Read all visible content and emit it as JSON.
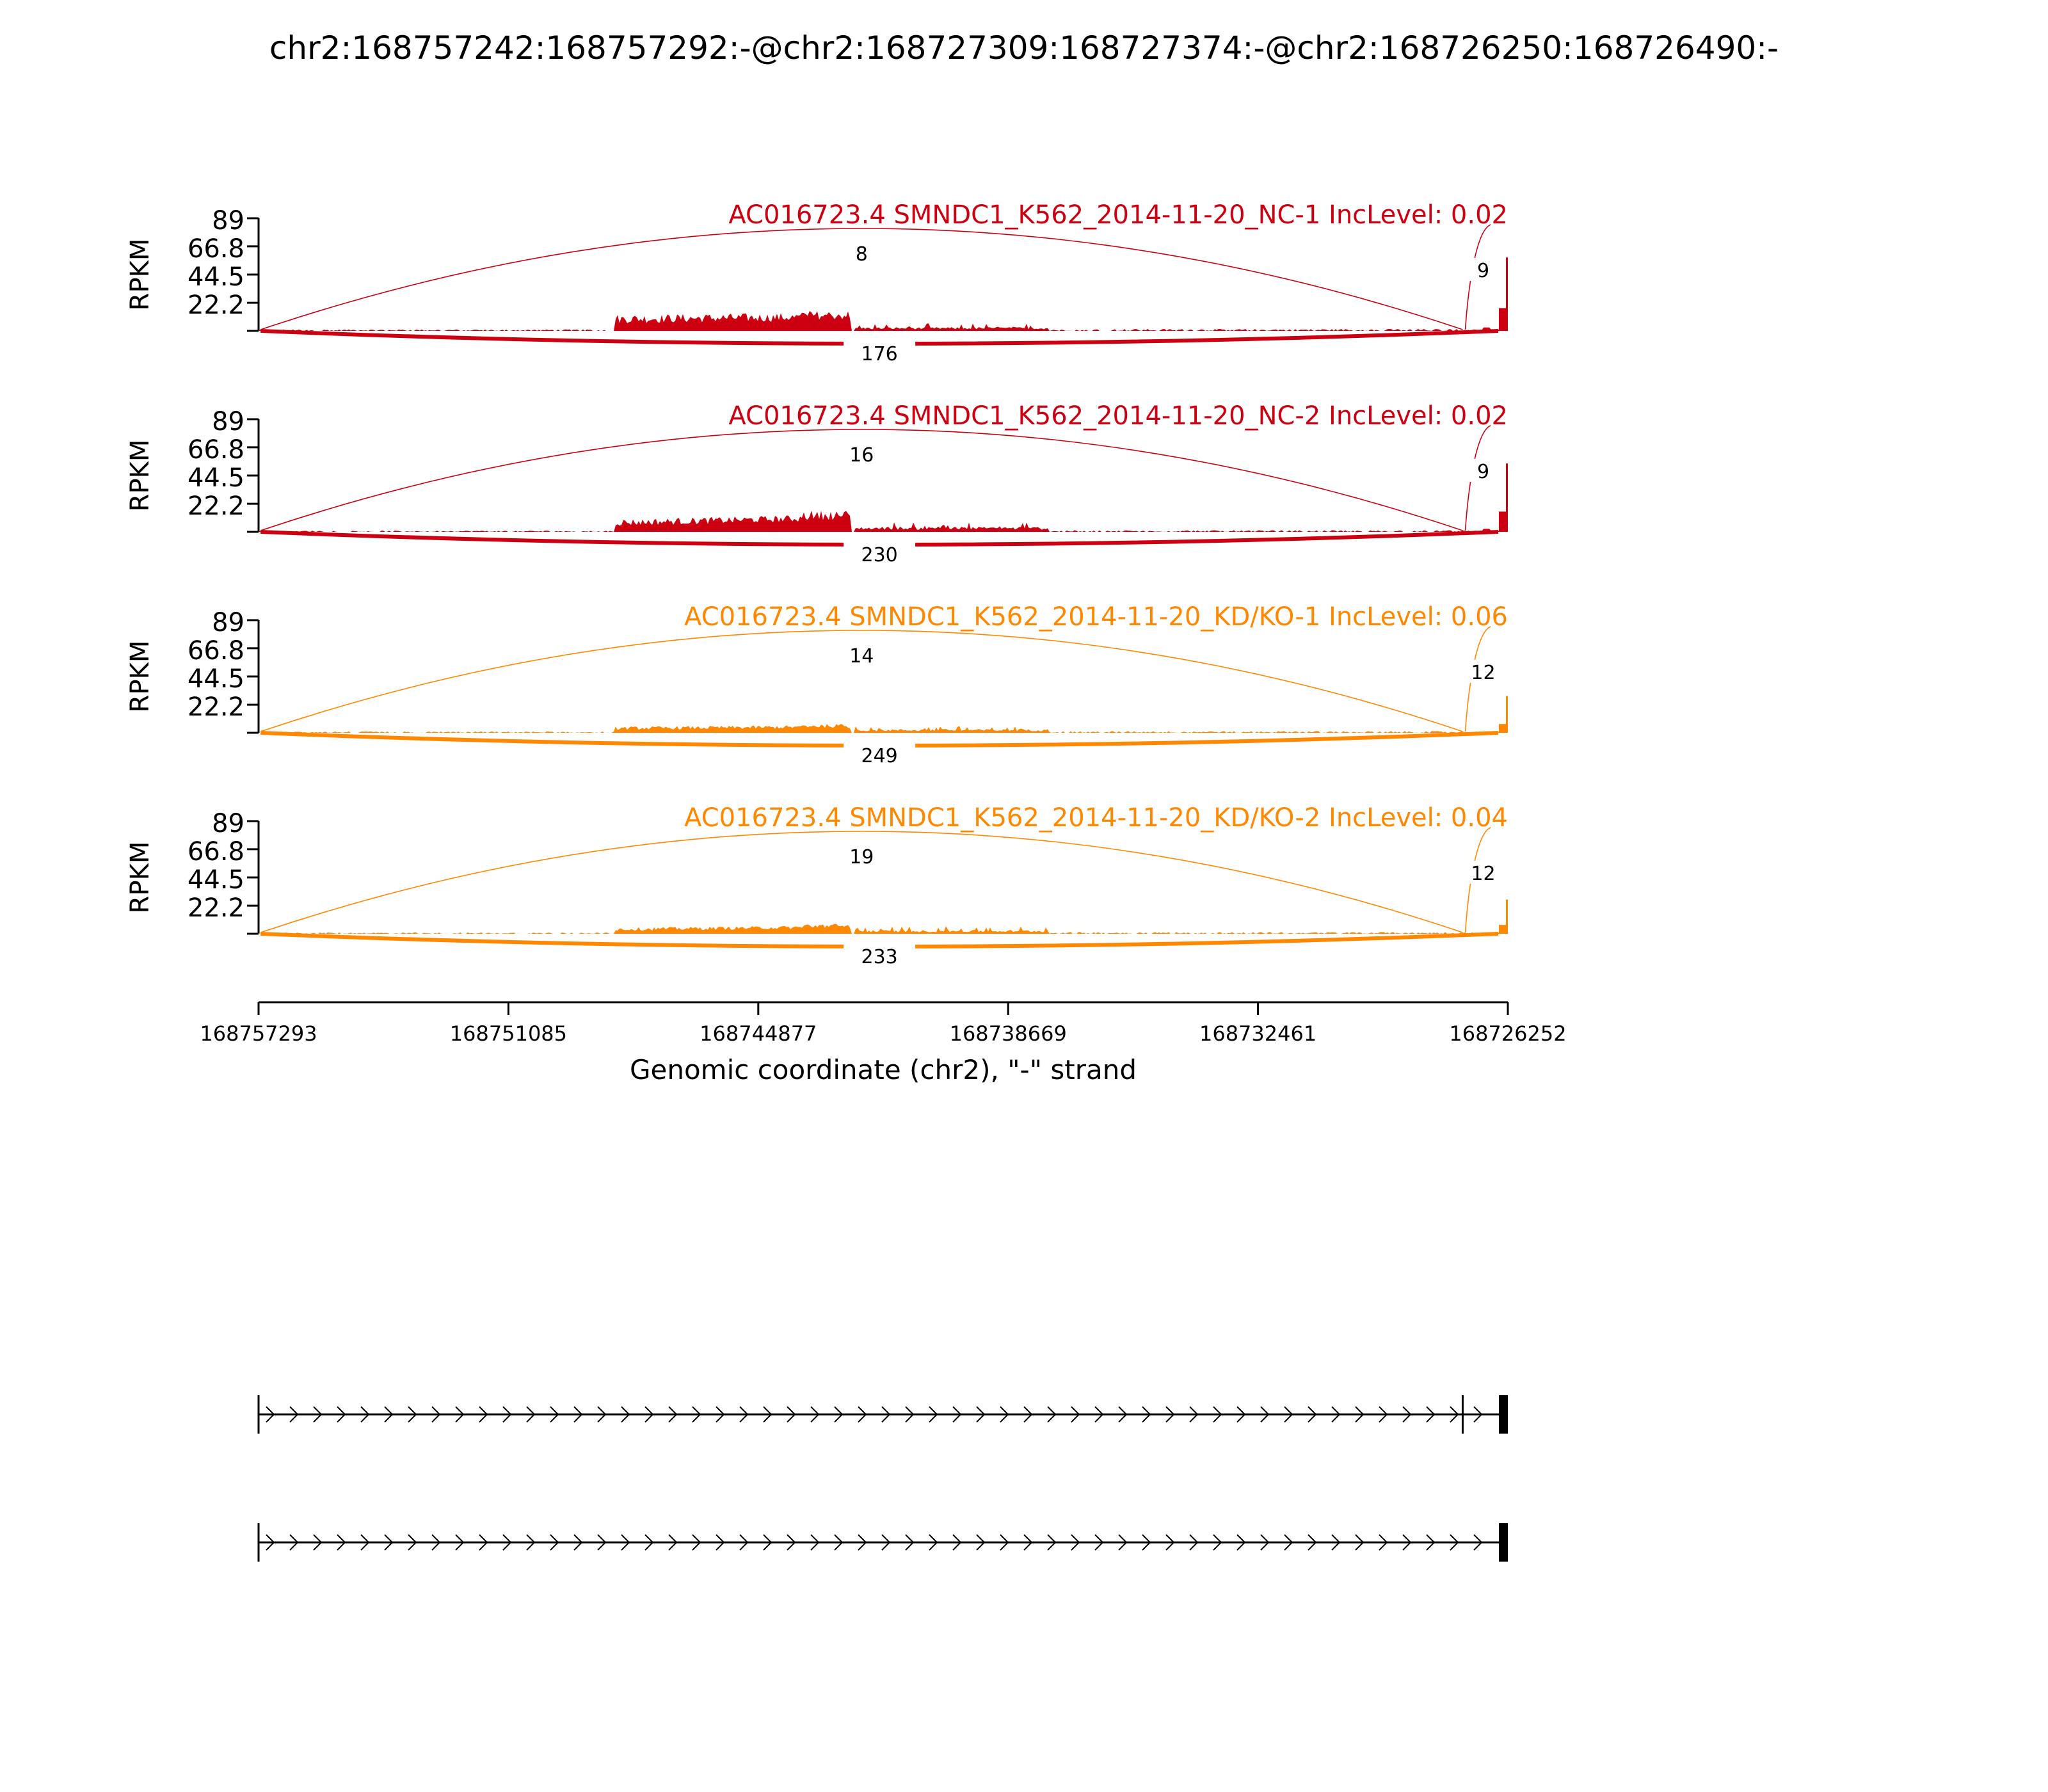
{
  "title": "chr2:168757242:168757292:-@chr2:168727309:168727374:-@chr2:168726250:168726490:-",
  "chart_data": {
    "type": "area",
    "title": "chr2:168757242:168757292:-@chr2:168727309:168727374:-@chr2:168726250:168726490:-",
    "ylabel": "RPKM",
    "xlabel": "Genomic coordinate (chr2), \"-\" strand",
    "x_range": [
      168757293,
      168726252
    ],
    "x_ticks": [
      "168757293",
      "168751085",
      "168744877",
      "168738669",
      "168732461",
      "168726252"
    ],
    "y_range": [
      0,
      89
    ],
    "y_ticks": [
      "89",
      "66.8",
      "44.5",
      "22.2"
    ],
    "grid": false,
    "panels": [
      {
        "label": "AC016723.4 SMNDC1_K562_2014-11-20_NC-1 IncLevel: 0.02",
        "color": "#cc0011",
        "coverage": {
          "low_flank": 1.2,
          "mid_left": 13,
          "mid_right": 3,
          "peak_left": 16,
          "peak_right": 7,
          "exit_exon": 18,
          "end_exon": 58
        },
        "junctions": [
          {
            "from": 168757242,
            "to": 168727374,
            "reads": "8",
            "side": "above"
          },
          {
            "from": 168727309,
            "to": 168726490,
            "reads": "9",
            "side": "above"
          },
          {
            "from": 168757242,
            "to": 168726490,
            "reads": "176",
            "side": "below"
          }
        ]
      },
      {
        "label": "AC016723.4 SMNDC1_K562_2014-11-20_NC-2 IncLevel: 0.02",
        "color": "#cc0011",
        "coverage": {
          "low_flank": 1.0,
          "mid_left": 10,
          "mid_right": 4,
          "peak_left": 17,
          "peak_right": 7,
          "exit_exon": 16,
          "end_exon": 54
        },
        "junctions": [
          {
            "from": 168757242,
            "to": 168727374,
            "reads": "16",
            "side": "above"
          },
          {
            "from": 168727309,
            "to": 168726490,
            "reads": "9",
            "side": "above"
          },
          {
            "from": 168757242,
            "to": 168726490,
            "reads": "230",
            "side": "below"
          }
        ]
      },
      {
        "label": "AC016723.4 SMNDC1_K562_2014-11-20_KD/KO-1 IncLevel: 0.06",
        "color": "#ff8800",
        "coverage": {
          "low_flank": 1.1,
          "mid_left": 5,
          "mid_right": 3,
          "peak_left": 7,
          "peak_right": 3,
          "exit_exon": 7,
          "end_exon": 29
        },
        "junctions": [
          {
            "from": 168757242,
            "to": 168727374,
            "reads": "14",
            "side": "above"
          },
          {
            "from": 168727309,
            "to": 168726490,
            "reads": "12",
            "side": "above"
          },
          {
            "from": 168757242,
            "to": 168726490,
            "reads": "249",
            "side": "below"
          }
        ]
      },
      {
        "label": "AC016723.4 SMNDC1_K562_2014-11-20_KD/KO-2 IncLevel: 0.04",
        "color": "#ff8800",
        "coverage": {
          "low_flank": 1.1,
          "mid_left": 5,
          "mid_right": 3,
          "peak_left": 8,
          "peak_right": 3,
          "exit_exon": 7,
          "end_exon": 27
        },
        "junctions": [
          {
            "from": 168757242,
            "to": 168727374,
            "reads": "19",
            "side": "above"
          },
          {
            "from": 168727309,
            "to": 168726490,
            "reads": "12",
            "side": "above"
          },
          {
            "from": 168757242,
            "to": 168726490,
            "reads": "233",
            "side": "below"
          }
        ]
      }
    ],
    "transcripts": [
      {
        "exons": [
          [
            168757242,
            168757292
          ],
          [
            168727309,
            168727374
          ],
          [
            168726250,
            168726490
          ]
        ]
      },
      {
        "exons": [
          [
            168757242,
            168757292
          ],
          [
            168726250,
            168726490
          ]
        ]
      }
    ]
  }
}
